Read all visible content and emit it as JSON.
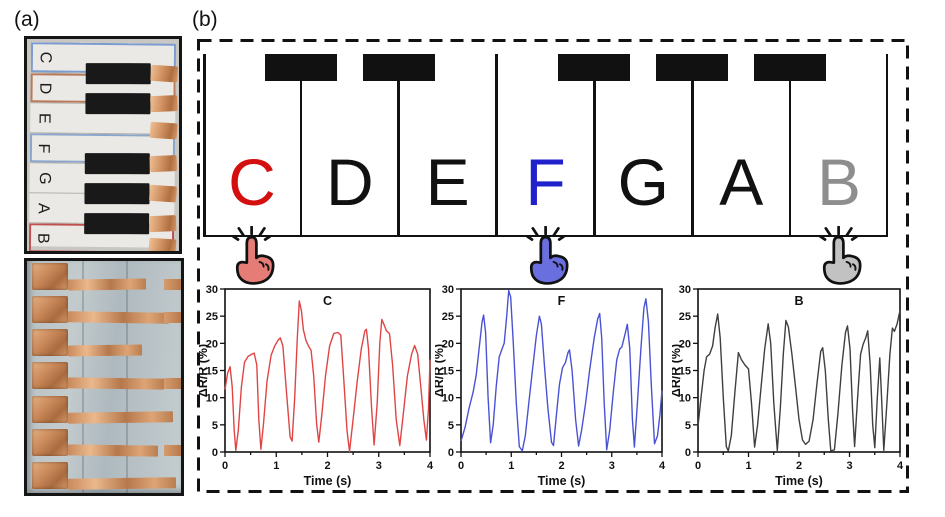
{
  "figure": {
    "label_a": "(a)",
    "label_b": "(b)"
  },
  "panel_a": {
    "top_photo": {
      "keys": [
        {
          "letter": "C",
          "outline": "#7b9cd0"
        },
        {
          "letter": "D",
          "outline": "#b97a5a"
        },
        {
          "letter": "E",
          "outline": null
        },
        {
          "letter": "F",
          "outline": "#8aa6cc"
        },
        {
          "letter": "G",
          "outline": null
        },
        {
          "letter": "A",
          "outline": null
        },
        {
          "letter": "B",
          "outline": "#c05050"
        }
      ],
      "black_key_after": [
        0,
        1,
        3,
        4,
        5
      ],
      "copper_tab_count": 7
    },
    "bottom_photo": {
      "rows": 7,
      "strip_widths_pct": [
        70,
        90,
        66,
        86,
        94,
        80,
        96
      ],
      "fragment_rows": [
        0,
        1,
        3,
        5
      ],
      "copper_color": "#c9895a"
    }
  },
  "panel_b": {
    "keyboard": {
      "keys": [
        {
          "letter": "C",
          "color": "#d40f0f",
          "pressed": true,
          "hand_color": "#e57d76"
        },
        {
          "letter": "D",
          "color": "#111111",
          "pressed": false,
          "hand_color": null
        },
        {
          "letter": "E",
          "color": "#111111",
          "pressed": false,
          "hand_color": null
        },
        {
          "letter": "F",
          "color": "#2020cc",
          "pressed": true,
          "hand_color": "#6a6fe0"
        },
        {
          "letter": "G",
          "color": "#111111",
          "pressed": false,
          "hand_color": null
        },
        {
          "letter": "A",
          "color": "#111111",
          "pressed": false,
          "hand_color": null
        },
        {
          "letter": "B",
          "color": "#8e8e8e",
          "pressed": true,
          "hand_color": "#c2c2c2"
        }
      ],
      "black_key_after": [
        0,
        1,
        3,
        4,
        5
      ]
    }
  },
  "chart_data": [
    {
      "type": "line",
      "title": "C",
      "xlabel": "Time (s)",
      "ylabel": "ΔR/R (%)",
      "xlim": [
        0,
        4
      ],
      "ylim": [
        0,
        30
      ],
      "xtick_step": 1,
      "xminor_step": 0.5,
      "ytick_step": 5,
      "legend_position": "none",
      "grid": false,
      "color": "#e04545",
      "points": [
        [
          0,
          11.5
        ],
        [
          0.05,
          14.5
        ],
        [
          0.1,
          15.7
        ],
        [
          0.14,
          12
        ],
        [
          0.18,
          4
        ],
        [
          0.21,
          0.3
        ],
        [
          0.26,
          4
        ],
        [
          0.32,
          12
        ],
        [
          0.38,
          16.5
        ],
        [
          0.45,
          17.6
        ],
        [
          0.52,
          18
        ],
        [
          0.57,
          18.2
        ],
        [
          0.62,
          16
        ],
        [
          0.66,
          6
        ],
        [
          0.7,
          0.5
        ],
        [
          0.75,
          5
        ],
        [
          0.82,
          13
        ],
        [
          0.9,
          17.8
        ],
        [
          0.97,
          19.5
        ],
        [
          1.03,
          20.5
        ],
        [
          1.08,
          21
        ],
        [
          1.13,
          19.5
        ],
        [
          1.2,
          11
        ],
        [
          1.27,
          2.8
        ],
        [
          1.31,
          2
        ],
        [
          1.36,
          10
        ],
        [
          1.41,
          21
        ],
        [
          1.45,
          27.8
        ],
        [
          1.49,
          26
        ],
        [
          1.53,
          22.5
        ],
        [
          1.58,
          20.5
        ],
        [
          1.63,
          19.5
        ],
        [
          1.68,
          18.7
        ],
        [
          1.73,
          14
        ],
        [
          1.79,
          5
        ],
        [
          1.83,
          1.8
        ],
        [
          1.89,
          7
        ],
        [
          1.96,
          14
        ],
        [
          2.04,
          19.5
        ],
        [
          2.12,
          21.8
        ],
        [
          2.2,
          22
        ],
        [
          2.26,
          21.5
        ],
        [
          2.32,
          13
        ],
        [
          2.38,
          4
        ],
        [
          2.43,
          0.1
        ],
        [
          2.5,
          6
        ],
        [
          2.58,
          13
        ],
        [
          2.66,
          19
        ],
        [
          2.73,
          22.3
        ],
        [
          2.76,
          22.6
        ],
        [
          2.8,
          19
        ],
        [
          2.86,
          8
        ],
        [
          2.91,
          1.3
        ],
        [
          2.97,
          9
        ],
        [
          3.02,
          20
        ],
        [
          3.06,
          24.4
        ],
        [
          3.1,
          23.5
        ],
        [
          3.15,
          22.3
        ],
        [
          3.21,
          21.8
        ],
        [
          3.27,
          16
        ],
        [
          3.34,
          6
        ],
        [
          3.41,
          1.2
        ],
        [
          3.48,
          7
        ],
        [
          3.56,
          14
        ],
        [
          3.64,
          18
        ],
        [
          3.7,
          19.6
        ],
        [
          3.76,
          18
        ],
        [
          3.82,
          12
        ],
        [
          3.88,
          6
        ],
        [
          3.93,
          2.2
        ],
        [
          3.97,
          8
        ],
        [
          4,
          17
        ]
      ]
    },
    {
      "type": "line",
      "title": "F",
      "xlabel": "Time (s)",
      "ylabel": "ΔR/R (%)",
      "xlim": [
        0,
        4
      ],
      "ylim": [
        0,
        30
      ],
      "xtick_step": 1,
      "xminor_step": 0.5,
      "ytick_step": 5,
      "legend_position": "none",
      "grid": false,
      "color": "#4a52d4",
      "points": [
        [
          0,
          2
        ],
        [
          0.08,
          4.5
        ],
        [
          0.16,
          8
        ],
        [
          0.24,
          11
        ],
        [
          0.3,
          14
        ],
        [
          0.36,
          19
        ],
        [
          0.42,
          24
        ],
        [
          0.45,
          25.2
        ],
        [
          0.49,
          22
        ],
        [
          0.54,
          10
        ],
        [
          0.59,
          1.7
        ],
        [
          0.64,
          5
        ],
        [
          0.7,
          12
        ],
        [
          0.76,
          17.5
        ],
        [
          0.81,
          18.8
        ],
        [
          0.86,
          20
        ],
        [
          0.91,
          25
        ],
        [
          0.95,
          29.7
        ],
        [
          0.99,
          28.5
        ],
        [
          1.04,
          20
        ],
        [
          1.1,
          9
        ],
        [
          1.16,
          1
        ],
        [
          1.22,
          0.2
        ],
        [
          1.28,
          3
        ],
        [
          1.35,
          9
        ],
        [
          1.42,
          15
        ],
        [
          1.5,
          21.5
        ],
        [
          1.56,
          25
        ],
        [
          1.6,
          23.5
        ],
        [
          1.66,
          16
        ],
        [
          1.73,
          8
        ],
        [
          1.8,
          1.8
        ],
        [
          1.84,
          1.2
        ],
        [
          1.9,
          7
        ],
        [
          1.96,
          12.5
        ],
        [
          2.02,
          15.5
        ],
        [
          2.08,
          16.5
        ],
        [
          2.13,
          18.3
        ],
        [
          2.16,
          18.8
        ],
        [
          2.21,
          15
        ],
        [
          2.28,
          6
        ],
        [
          2.34,
          1.1
        ],
        [
          2.4,
          4
        ],
        [
          2.48,
          9
        ],
        [
          2.56,
          15
        ],
        [
          2.65,
          21
        ],
        [
          2.72,
          24.5
        ],
        [
          2.76,
          25.5
        ],
        [
          2.8,
          21
        ],
        [
          2.85,
          9
        ],
        [
          2.9,
          0.4
        ],
        [
          2.96,
          4
        ],
        [
          3.03,
          11
        ],
        [
          3.1,
          17
        ],
        [
          3.16,
          19
        ],
        [
          3.2,
          19.3
        ],
        [
          3.26,
          21.5
        ],
        [
          3.31,
          23.5
        ],
        [
          3.36,
          19
        ],
        [
          3.41,
          6
        ],
        [
          3.45,
          0.9
        ],
        [
          3.51,
          9
        ],
        [
          3.58,
          19
        ],
        [
          3.64,
          26.5
        ],
        [
          3.68,
          28.2
        ],
        [
          3.73,
          24
        ],
        [
          3.79,
          12
        ],
        [
          3.85,
          1.5
        ],
        [
          3.91,
          3
        ],
        [
          3.96,
          7
        ],
        [
          4,
          11.3
        ]
      ]
    },
    {
      "type": "line",
      "title": "B",
      "xlabel": "Time (s)",
      "ylabel": "ΔR/R (%)",
      "xlim": [
        0,
        4
      ],
      "ylim": [
        0,
        30
      ],
      "xtick_step": 1,
      "xminor_step": 0.5,
      "ytick_step": 5,
      "legend_position": "none",
      "grid": false,
      "color": "#3f3f3f",
      "points": [
        [
          0,
          4.8
        ],
        [
          0.06,
          10
        ],
        [
          0.12,
          15
        ],
        [
          0.17,
          17.5
        ],
        [
          0.23,
          18
        ],
        [
          0.29,
          19.5
        ],
        [
          0.34,
          23
        ],
        [
          0.39,
          25.4
        ],
        [
          0.44,
          21
        ],
        [
          0.5,
          10
        ],
        [
          0.56,
          1
        ],
        [
          0.6,
          0.2
        ],
        [
          0.66,
          3
        ],
        [
          0.73,
          11
        ],
        [
          0.8,
          18.3
        ],
        [
          0.86,
          17
        ],
        [
          0.93,
          16
        ],
        [
          1,
          15.3
        ],
        [
          1.06,
          9
        ],
        [
          1.12,
          0.9
        ],
        [
          1.18,
          5
        ],
        [
          1.25,
          12
        ],
        [
          1.32,
          19
        ],
        [
          1.39,
          23.6
        ],
        [
          1.44,
          20
        ],
        [
          1.5,
          9
        ],
        [
          1.57,
          0.3
        ],
        [
          1.63,
          8
        ],
        [
          1.69,
          18
        ],
        [
          1.74,
          24.2
        ],
        [
          1.79,
          23
        ],
        [
          1.86,
          18
        ],
        [
          1.93,
          12
        ],
        [
          2,
          6
        ],
        [
          2.07,
          2.2
        ],
        [
          2.13,
          1.4
        ],
        [
          2.2,
          2
        ],
        [
          2.28,
          6
        ],
        [
          2.36,
          13
        ],
        [
          2.43,
          18.5
        ],
        [
          2.47,
          19.2
        ],
        [
          2.52,
          15
        ],
        [
          2.58,
          6
        ],
        [
          2.63,
          0.2
        ],
        [
          2.7,
          0.4
        ],
        [
          2.77,
          7
        ],
        [
          2.85,
          16
        ],
        [
          2.92,
          22
        ],
        [
          2.96,
          23.2
        ],
        [
          3.01,
          19
        ],
        [
          3.06,
          8
        ],
        [
          3.1,
          1
        ],
        [
          3.16,
          10
        ],
        [
          3.22,
          18
        ],
        [
          3.27,
          19.8
        ],
        [
          3.32,
          21
        ],
        [
          3.36,
          22.3
        ],
        [
          3.41,
          16
        ],
        [
          3.46,
          5
        ],
        [
          3.5,
          0.8
        ],
        [
          3.55,
          10
        ],
        [
          3.6,
          17.3
        ],
        [
          3.64,
          9
        ],
        [
          3.68,
          0.3
        ],
        [
          3.74,
          9
        ],
        [
          3.8,
          18
        ],
        [
          3.85,
          22.8
        ],
        [
          3.89,
          22.2
        ],
        [
          3.94,
          23.5
        ],
        [
          4,
          26
        ]
      ]
    }
  ]
}
